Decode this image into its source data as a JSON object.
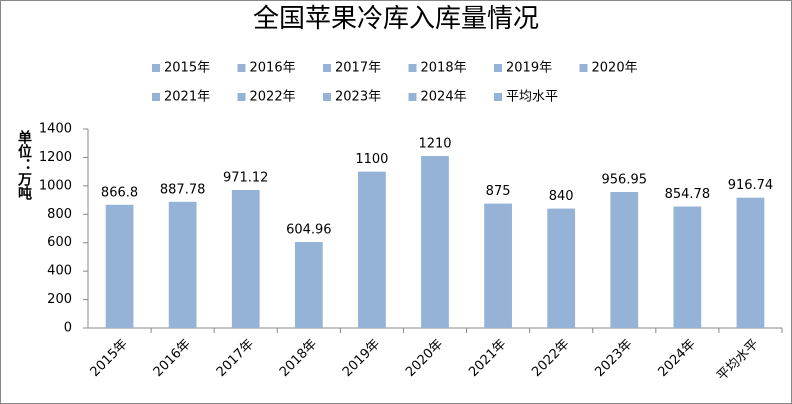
{
  "chart_data": {
    "type": "bar",
    "title": "全国苹果冷库入库量情况",
    "y_label": "单位：万吨",
    "categories": [
      "2015年",
      "2016年",
      "2017年",
      "2018年",
      "2019年",
      "2020年",
      "2021年",
      "2022年",
      "2023年",
      "2024年",
      "平均水平"
    ],
    "values": [
      866.8,
      887.78,
      971.12,
      604.96,
      1100,
      1210,
      875,
      840,
      956.95,
      854.78,
      916.74
    ],
    "color": "#95b3d7",
    "ylim": [
      0,
      1400
    ],
    "yticks": [
      0,
      200,
      400,
      600,
      800,
      1000,
      1200,
      1400
    ],
    "grid": false,
    "legend": "top"
  }
}
